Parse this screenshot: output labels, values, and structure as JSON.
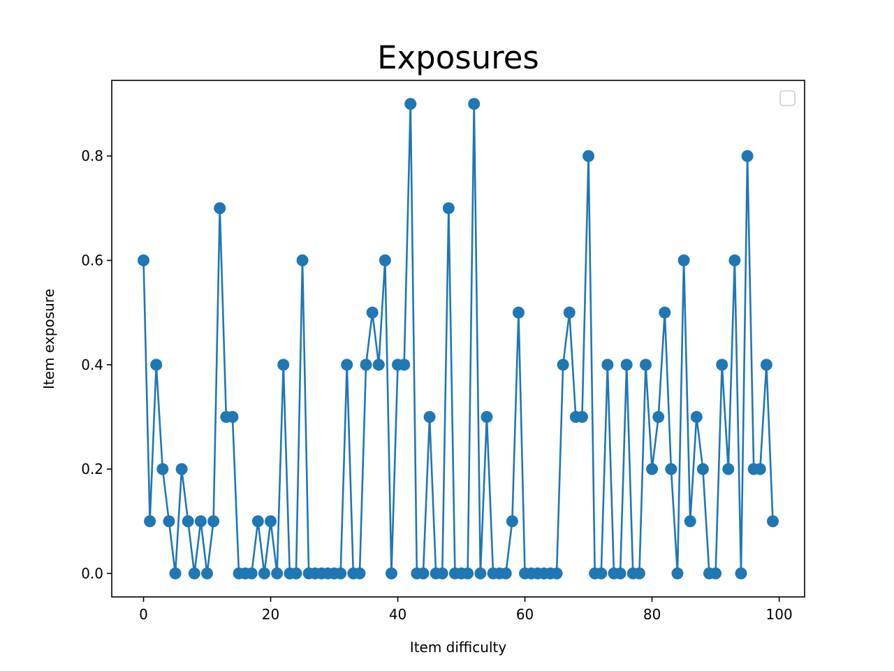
{
  "chart_data": {
    "type": "line",
    "title": "Exposures",
    "xlabel": "Item difficulty",
    "ylabel": "Item exposure",
    "xlim": [
      -5,
      104
    ],
    "ylim": [
      -0.045,
      0.945
    ],
    "xticks": [
      "0",
      "20",
      "40",
      "60",
      "80",
      "100"
    ],
    "yticks": [
      "0.0",
      "0.2",
      "0.4",
      "0.6",
      "0.8"
    ],
    "grid": false,
    "legend": "top-right (empty)",
    "color": "#1f77b4",
    "series": [
      {
        "marker": "circle",
        "x": [
          0,
          1,
          2,
          3,
          4,
          5,
          6,
          7,
          8,
          9,
          10,
          11,
          12,
          13,
          14,
          15,
          16,
          17,
          18,
          19,
          20,
          21,
          22,
          23,
          24,
          25,
          26,
          27,
          28,
          29,
          30,
          31,
          32,
          33,
          34,
          35,
          36,
          37,
          38,
          39,
          40,
          41,
          42,
          43,
          44,
          45,
          46,
          47,
          48,
          49,
          50,
          51,
          52,
          53,
          54,
          55,
          56,
          57,
          58,
          59,
          60,
          61,
          62,
          63,
          64,
          65,
          66,
          67,
          68,
          69,
          70,
          71,
          72,
          73,
          74,
          75,
          76,
          77,
          78,
          79,
          80,
          81,
          82,
          83,
          84,
          85,
          86,
          87,
          88,
          89,
          90,
          91,
          92,
          93,
          94,
          95,
          96,
          97,
          98,
          99
        ],
        "values": [
          0.6,
          0.1,
          0.4,
          0.2,
          0.1,
          0.0,
          0.2,
          0.1,
          0.0,
          0.1,
          0.0,
          0.1,
          0.7,
          0.3,
          0.3,
          0.0,
          0.0,
          0.0,
          0.1,
          0.0,
          0.1,
          0.0,
          0.4,
          0.0,
          0.0,
          0.6,
          0.0,
          0.0,
          0.0,
          0.0,
          0.0,
          0.0,
          0.4,
          0.0,
          0.0,
          0.4,
          0.5,
          0.4,
          0.6,
          0.0,
          0.4,
          0.4,
          0.9,
          0.0,
          0.0,
          0.3,
          0.0,
          0.0,
          0.7,
          0.0,
          0.0,
          0.0,
          0.9,
          0.0,
          0.3,
          0.0,
          0.0,
          0.0,
          0.1,
          0.5,
          0.0,
          0.0,
          0.0,
          0.0,
          0.0,
          0.0,
          0.4,
          0.5,
          0.3,
          0.3,
          0.8,
          0.0,
          0.0,
          0.4,
          0.0,
          0.0,
          0.4,
          0.0,
          0.0,
          0.4,
          0.2,
          0.3,
          0.5,
          0.2,
          0.0,
          0.6,
          0.1,
          0.3,
          0.2,
          0.0,
          0.0,
          0.4,
          0.2,
          0.6,
          0.0,
          0.8,
          0.2,
          0.2,
          0.4,
          0.1
        ]
      }
    ]
  }
}
